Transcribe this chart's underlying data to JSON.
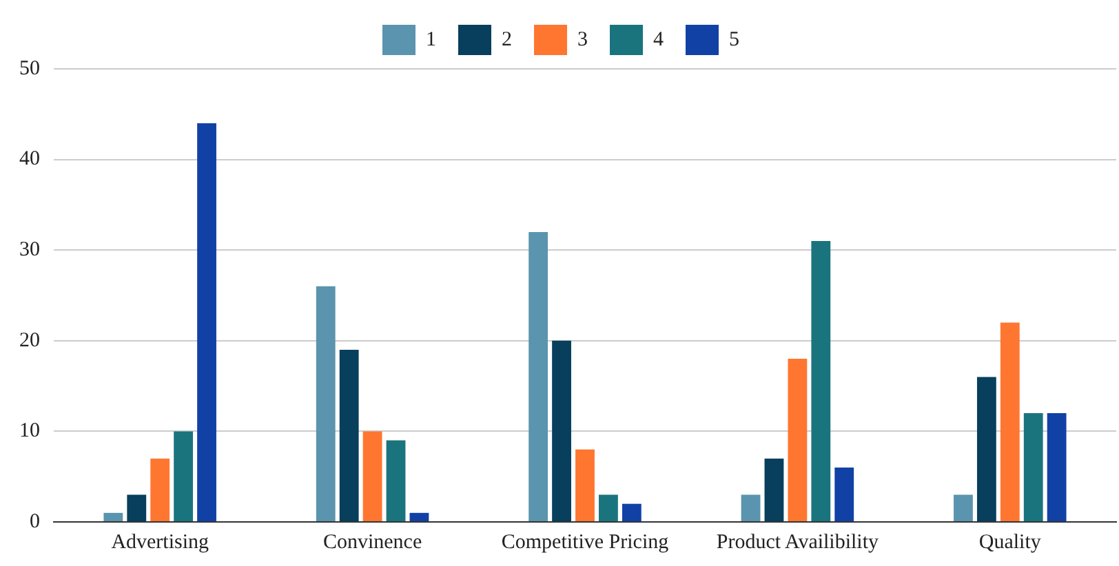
{
  "chart_data": {
    "type": "bar",
    "categories": [
      "Advertising",
      "Convinence",
      "Competitive Pricing",
      "Product Availibility",
      "Quality"
    ],
    "series": [
      {
        "name": "1",
        "color": "#5b94ae",
        "values": [
          1,
          26,
          32,
          3,
          3
        ]
      },
      {
        "name": "2",
        "color": "#073f5d",
        "values": [
          3,
          19,
          20,
          7,
          16
        ]
      },
      {
        "name": "3",
        "color": "#ff7631",
        "values": [
          7,
          10,
          8,
          18,
          22
        ]
      },
      {
        "name": "4",
        "color": "#1a747e",
        "values": [
          10,
          9,
          3,
          31,
          12
        ]
      },
      {
        "name": "5",
        "color": "#1241a6",
        "values": [
          44,
          1,
          2,
          6,
          12
        ]
      }
    ],
    "ylim": [
      0,
      50
    ],
    "yticks": [
      0,
      10,
      20,
      30,
      40,
      50
    ],
    "grid": "y",
    "legend": "top"
  }
}
